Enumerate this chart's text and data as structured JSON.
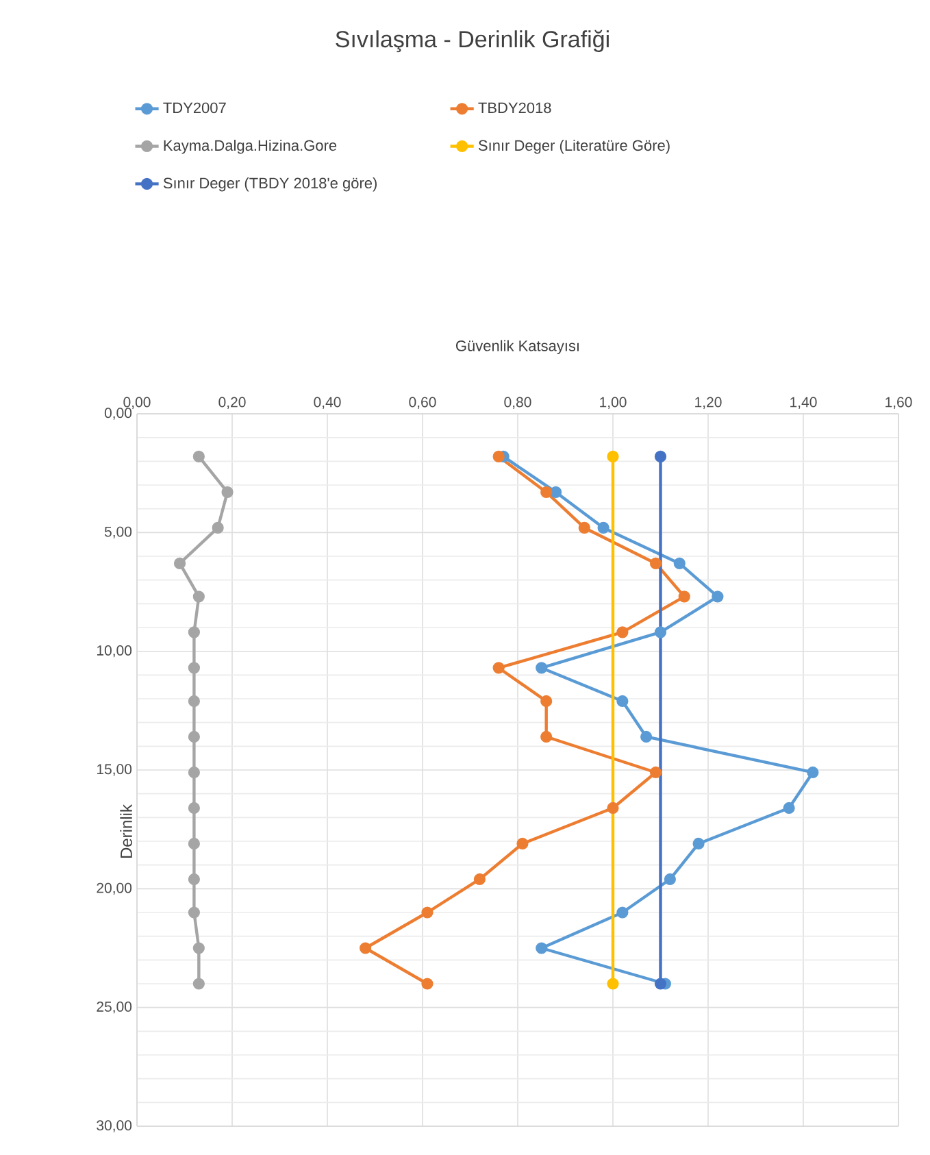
{
  "chart_data": {
    "type": "line",
    "title": "Sıvılaşma - Derinlik Grafiği",
    "xlabel": "Güvenlik Katsayısı",
    "ylabel": "Derinlik",
    "xlim": [
      0,
      1.6
    ],
    "ylim": [
      30,
      0
    ],
    "xticks": [
      {
        "value": 0,
        "label": "0,00"
      },
      {
        "value": 0.2,
        "label": "0,20"
      },
      {
        "value": 0.4,
        "label": "0,40"
      },
      {
        "value": 0.6,
        "label": "0,60"
      },
      {
        "value": 0.8,
        "label": "0,80"
      },
      {
        "value": 1.0,
        "label": "1,00"
      },
      {
        "value": 1.2,
        "label": "1,20"
      },
      {
        "value": 1.4,
        "label": "1,40"
      },
      {
        "value": 1.6,
        "label": "1,60"
      }
    ],
    "yticks": [
      {
        "value": 0,
        "label": "0,00"
      },
      {
        "value": 5,
        "label": "5,00"
      },
      {
        "value": 10,
        "label": "10,00"
      },
      {
        "value": 15,
        "label": "15,00"
      },
      {
        "value": 20,
        "label": "20,00"
      },
      {
        "value": 25,
        "label": "25,00"
      },
      {
        "value": 30,
        "label": "30,00"
      }
    ],
    "grid": true,
    "legend": "top",
    "marker": "circle",
    "line_style": "solid",
    "series": [
      {
        "name": "TDY2007",
        "color": "#5b9bd5",
        "x": [
          0.77,
          0.88,
          0.98,
          1.14,
          1.22,
          1.1,
          0.85,
          1.02,
          1.07,
          1.42,
          1.37,
          1.18,
          1.12,
          1.02,
          0.85,
          1.11
        ],
        "values": [
          1.8,
          3.3,
          4.8,
          6.3,
          7.7,
          9.2,
          10.7,
          12.1,
          13.6,
          15.1,
          16.6,
          18.1,
          19.6,
          21.0,
          22.5,
          24.0
        ]
      },
      {
        "name": "TBDY2018",
        "color": "#ed7d31",
        "x": [
          0.76,
          0.86,
          0.94,
          1.09,
          1.15,
          1.02,
          0.76,
          0.86,
          0.86,
          1.09,
          1.0,
          0.81,
          0.72,
          0.61,
          0.48,
          0.61
        ],
        "values": [
          1.8,
          3.3,
          4.8,
          6.3,
          7.7,
          9.2,
          10.7,
          12.1,
          13.6,
          15.1,
          16.6,
          18.1,
          19.6,
          21.0,
          22.5,
          24.0
        ]
      },
      {
        "name": "Kayma.Dalga.Hizina.Gore",
        "color": "#a5a5a5",
        "x": [
          0.13,
          0.19,
          0.17,
          0.09,
          0.13,
          0.12,
          0.12,
          0.12,
          0.12,
          0.12,
          0.12,
          0.12,
          0.12,
          0.12,
          0.13,
          0.13
        ],
        "values": [
          1.8,
          3.3,
          4.8,
          6.3,
          7.7,
          9.2,
          10.7,
          12.1,
          13.6,
          15.1,
          16.6,
          18.1,
          19.6,
          21.0,
          22.5,
          24.0
        ]
      },
      {
        "name": "Sınır Deger (Literatüre Göre)",
        "color": "#ffc000",
        "x": [
          1.0,
          1.0
        ],
        "values": [
          1.8,
          24.0
        ]
      },
      {
        "name": "Sınır Deger (TBDY 2018'e göre)",
        "color": "#4472c4",
        "x": [
          1.1,
          1.1
        ],
        "values": [
          1.8,
          24.0
        ]
      }
    ]
  }
}
